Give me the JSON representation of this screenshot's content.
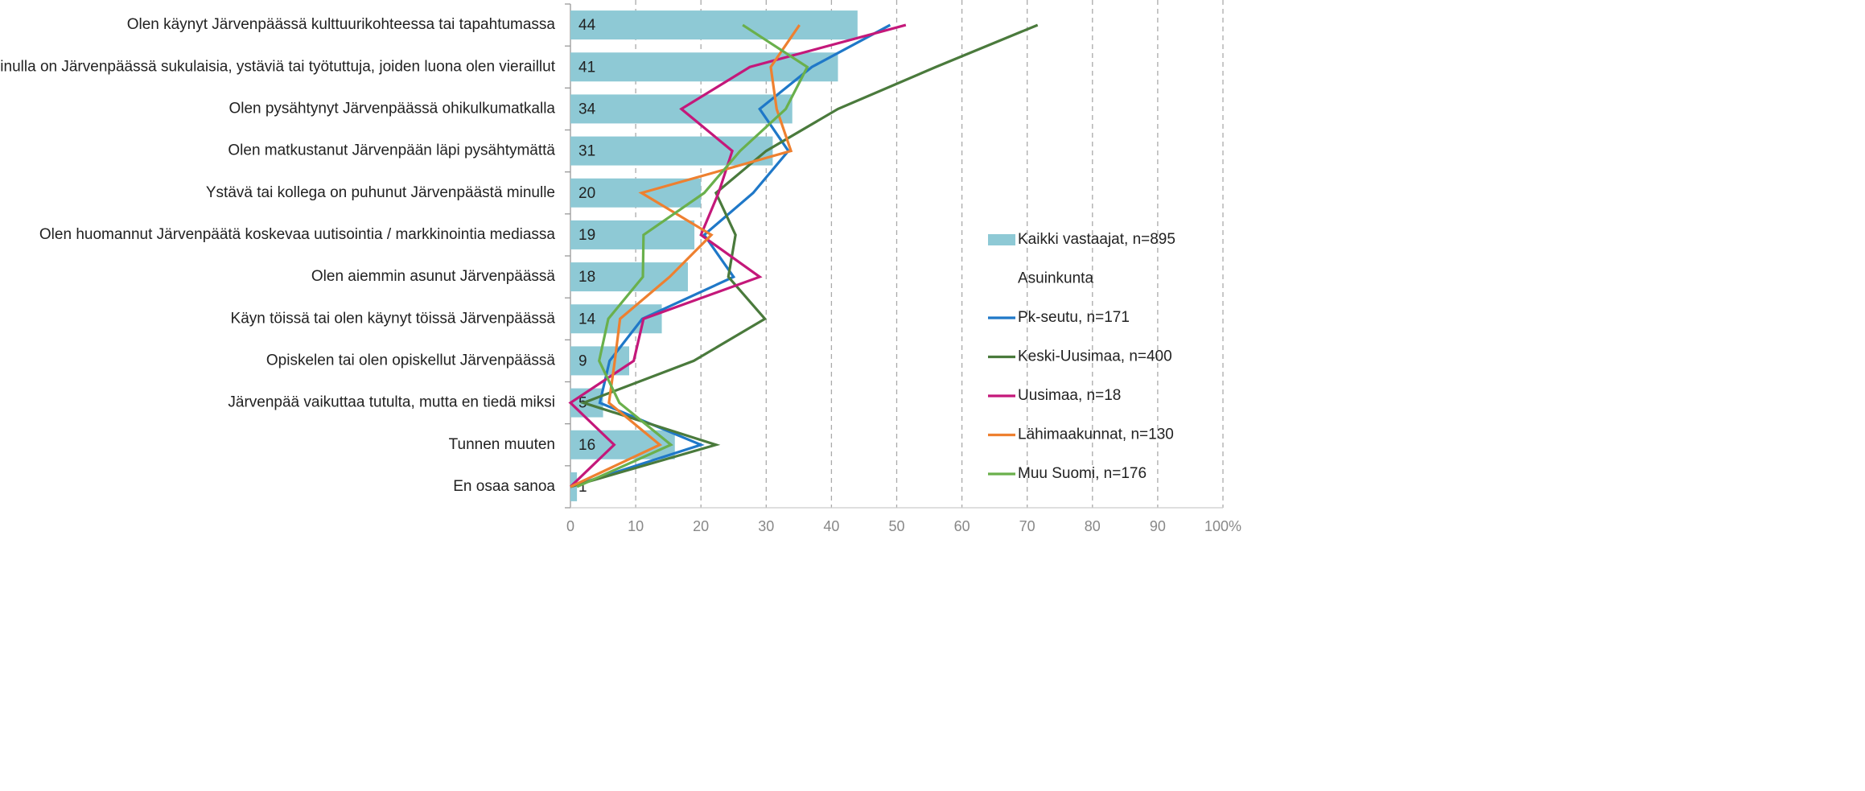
{
  "chart_data": {
    "type": "bar",
    "orientation": "horizontal",
    "categories": [
      "Olen käynyt Järvenpäässä kulttuurikohteessa tai tapahtumassa",
      "Minulla on Järvenpäässä sukulaisia, ystäviä tai työtuttuja, joiden luona olen vieraillut",
      "Olen pysähtynyt Järvenpäässä ohikulkumatkalla",
      "Olen matkustanut Järvenpään läpi pysähtymättä",
      "Ystävä tai kollega on puhunut Järvenpäästä minulle",
      "Olen huomannut Järvenpäätä koskevaa uutisointia / markkinointia mediassa",
      "Olen aiemmin asunut Järvenpäässä",
      "Käyn töissä tai olen käynyt töissä Järvenpäässä",
      "Opiskelen tai olen opiskellut Järvenpäässä",
      "Järvenpää vaikuttaa tutulta, mutta en tiedä miksi",
      "Tunnen muuten",
      "En osaa sanoa"
    ],
    "series": [
      {
        "name": "Kaikki vastaajat, n=895",
        "type": "bar",
        "color": "#8ec9d5",
        "values": [
          44,
          41,
          34,
          31,
          20,
          19,
          18,
          14,
          9,
          5,
          16,
          1
        ]
      },
      {
        "name": "Pk-seutu, n=171",
        "type": "line",
        "color": "#1f78c8",
        "values": [
          49,
          37,
          29,
          33.4,
          28,
          20.5,
          25,
          11,
          6,
          4.5,
          20,
          0
        ]
      },
      {
        "name": "Keski-Uusimaa, n=400",
        "type": "line",
        "color": "#4a7a3c",
        "values": [
          71.6,
          56,
          41,
          30,
          22.3,
          25.3,
          24.2,
          29.8,
          18.9,
          2,
          22.3,
          0
        ]
      },
      {
        "name": "Uusimaa, n=18",
        "type": "line",
        "color": "#c4187a",
        "values": [
          51.4,
          27.5,
          17,
          24.8,
          22.7,
          20,
          29,
          11.2,
          9.7,
          0,
          6.7,
          0
        ]
      },
      {
        "name": "Lähimaakunnat, n=130",
        "type": "line",
        "color": "#ee8030",
        "values": [
          35.1,
          30.7,
          31.6,
          33.8,
          10.9,
          21.6,
          15.2,
          7.6,
          6.8,
          5.9,
          13.7,
          0
        ]
      },
      {
        "name": "Muu Suomi, n=176",
        "type": "line",
        "color": "#6ab04c",
        "values": [
          26.4,
          36.3,
          33,
          26,
          20.5,
          11.2,
          11.1,
          5.8,
          4.4,
          7.5,
          15.4,
          1
        ]
      }
    ],
    "legend_heading": "Asuinkunta",
    "xlim": [
      0,
      100
    ],
    "xticks": [
      0,
      10,
      20,
      30,
      40,
      50,
      60,
      70,
      80,
      90,
      {
        "value": 100,
        "label": "100%"
      }
    ],
    "grid": true
  }
}
